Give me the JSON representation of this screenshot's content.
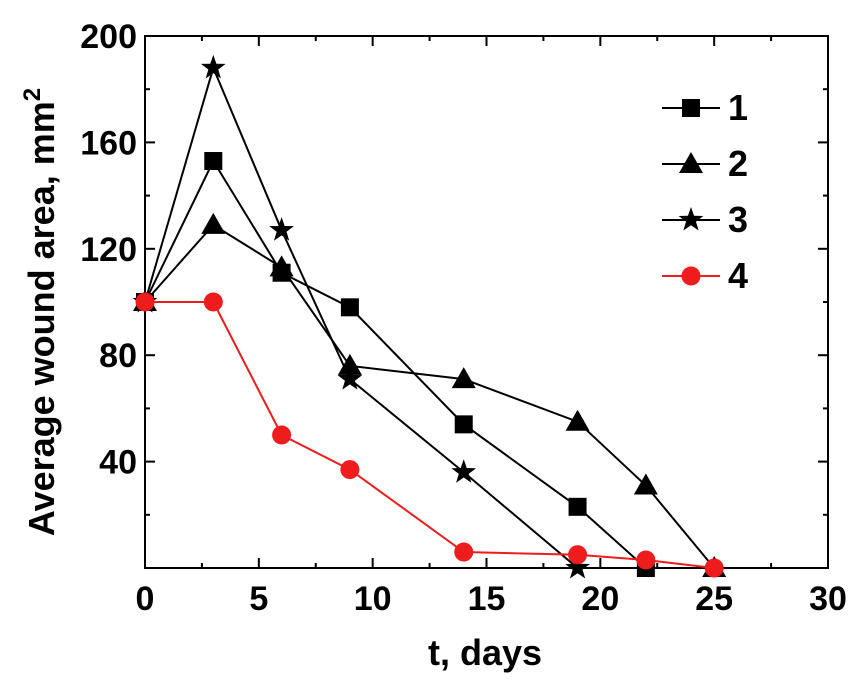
{
  "chart_data": {
    "type": "line",
    "title": "",
    "xlabel": "t, days",
    "ylabel": "Average wound area, mm",
    "ylabel_superscript": "2",
    "xlim": [
      0,
      30
    ],
    "ylim": [
      0,
      200
    ],
    "xticks": [
      0,
      5,
      10,
      15,
      20,
      25,
      30
    ],
    "yticks": [
      40,
      80,
      120,
      160,
      200
    ],
    "grid": false,
    "legend_position": "top-right",
    "series": [
      {
        "name": "1",
        "marker": "square",
        "color": "#000000",
        "points": [
          [
            0,
            100
          ],
          [
            3,
            153
          ],
          [
            6,
            111
          ],
          [
            9,
            98
          ],
          [
            14,
            54
          ],
          [
            19,
            23
          ],
          [
            22,
            0
          ]
        ]
      },
      {
        "name": "2",
        "marker": "triangle",
        "color": "#000000",
        "points": [
          [
            0,
            100
          ],
          [
            3,
            129
          ],
          [
            6,
            113
          ],
          [
            9,
            76
          ],
          [
            14,
            71
          ],
          [
            19,
            55
          ],
          [
            22,
            31
          ],
          [
            25,
            0
          ]
        ]
      },
      {
        "name": "3",
        "marker": "star",
        "color": "#000000",
        "points": [
          [
            0,
            100
          ],
          [
            3,
            188
          ],
          [
            6,
            127
          ],
          [
            9,
            71
          ],
          [
            14,
            36
          ],
          [
            19,
            0
          ]
        ]
      },
      {
        "name": "4",
        "marker": "circle",
        "color": "#ee1c1c",
        "points": [
          [
            0,
            100
          ],
          [
            3,
            100
          ],
          [
            6,
            50
          ],
          [
            9,
            37
          ],
          [
            14,
            6
          ],
          [
            19,
            5
          ],
          [
            22,
            3
          ],
          [
            25,
            0
          ]
        ]
      }
    ]
  }
}
